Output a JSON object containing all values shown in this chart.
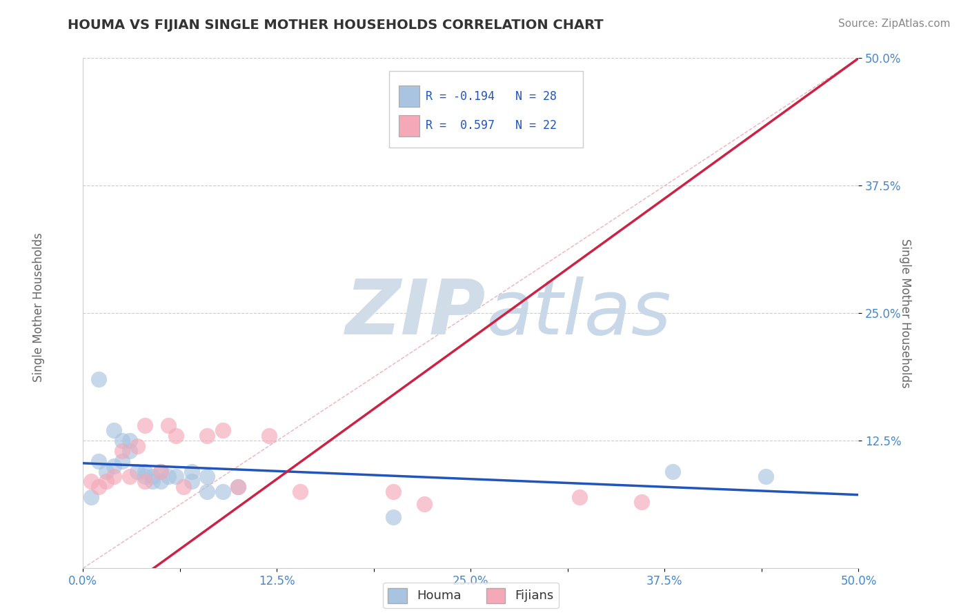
{
  "title": "HOUMA VS FIJIAN SINGLE MOTHER HOUSEHOLDS CORRELATION CHART",
  "source": "Source: ZipAtlas.com",
  "ylabel": "Single Mother Households",
  "xlim": [
    0.0,
    0.5
  ],
  "ylim": [
    0.0,
    0.5
  ],
  "xtick_labels": [
    "0.0%",
    "",
    "12.5%",
    "",
    "25.0%",
    "",
    "37.5%",
    "",
    "50.0%"
  ],
  "xtick_vals": [
    0.0,
    0.0625,
    0.125,
    0.1875,
    0.25,
    0.3125,
    0.375,
    0.4375,
    0.5
  ],
  "ytick_labels": [
    "12.5%",
    "25.0%",
    "37.5%",
    "50.0%"
  ],
  "ytick_vals": [
    0.125,
    0.25,
    0.375,
    0.5
  ],
  "houma_color": "#a8c4e0",
  "fijian_color": "#f4a8b8",
  "houma_line_color": "#2255bb",
  "fijian_line_color": "#cc2244",
  "diag_line_color": "#f0b0bc",
  "houma_R": -0.194,
  "houma_N": 28,
  "fijian_R": 0.597,
  "fijian_N": 22,
  "houma_scatter_x": [
    0.005,
    0.01,
    0.01,
    0.015,
    0.02,
    0.02,
    0.025,
    0.025,
    0.03,
    0.03,
    0.035,
    0.04,
    0.04,
    0.045,
    0.045,
    0.05,
    0.05,
    0.055,
    0.06,
    0.07,
    0.07,
    0.08,
    0.08,
    0.09,
    0.1,
    0.2,
    0.38,
    0.44
  ],
  "houma_scatter_y": [
    0.07,
    0.185,
    0.105,
    0.095,
    0.135,
    0.1,
    0.125,
    0.105,
    0.125,
    0.115,
    0.095,
    0.095,
    0.09,
    0.09,
    0.085,
    0.095,
    0.085,
    0.09,
    0.09,
    0.085,
    0.095,
    0.075,
    0.09,
    0.075,
    0.08,
    0.05,
    0.095,
    0.09
  ],
  "fijian_scatter_x": [
    0.005,
    0.01,
    0.015,
    0.02,
    0.025,
    0.03,
    0.035,
    0.04,
    0.04,
    0.05,
    0.055,
    0.06,
    0.065,
    0.08,
    0.09,
    0.1,
    0.12,
    0.14,
    0.2,
    0.22,
    0.32,
    0.36
  ],
  "fijian_scatter_y": [
    0.085,
    0.08,
    0.085,
    0.09,
    0.115,
    0.09,
    0.12,
    0.14,
    0.085,
    0.095,
    0.14,
    0.13,
    0.08,
    0.13,
    0.135,
    0.08,
    0.13,
    0.075,
    0.075,
    0.063,
    0.07,
    0.065
  ],
  "watermark_zip": "ZIP",
  "watermark_atlas": "atlas",
  "watermark_color_zip": "#d0dce8",
  "watermark_color_atlas": "#c8d8e8",
  "background_color": "#ffffff",
  "grid_color": "#cccccc",
  "title_color": "#333333",
  "axis_label_color": "#666666",
  "tick_color": "#4488cc",
  "source_color": "#888888",
  "legend_label_color": "#333333",
  "stats_text_color": "#2255bb",
  "houma_R_str": "R = -0.194",
  "fijian_R_str": "R =  0.597",
  "houma_N_str": "N = 28",
  "fijian_N_str": "N = 22"
}
